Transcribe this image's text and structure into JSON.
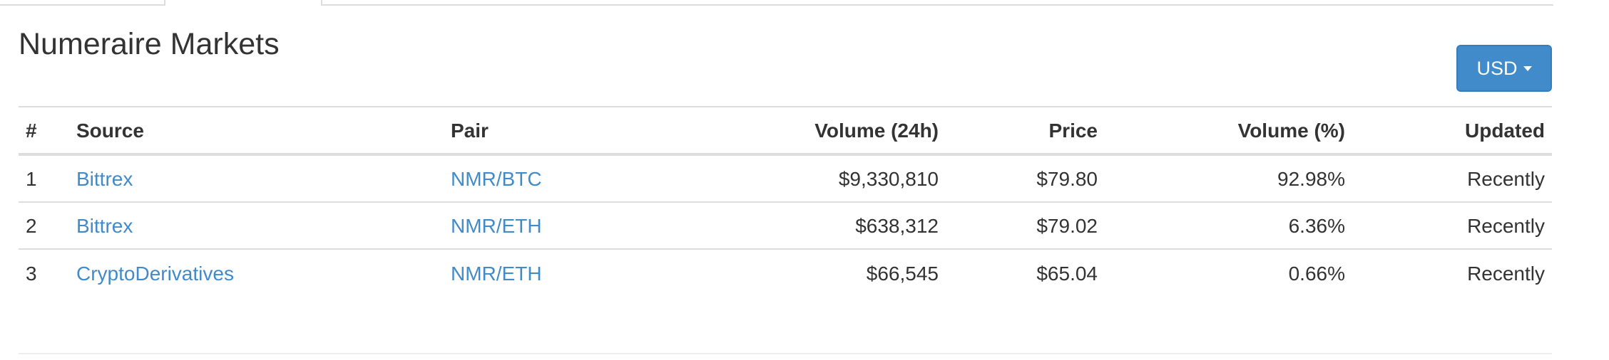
{
  "page": {
    "title": "Numeraire Markets"
  },
  "currency_button": {
    "label": "USD",
    "icon": "caret-down-icon"
  },
  "colors": {
    "link": "#428bca",
    "button": "#428bca",
    "text": "#333333",
    "border": "#dddddd"
  },
  "table": {
    "headers": [
      "#",
      "Source",
      "Pair",
      "Volume (24h)",
      "Price",
      "Volume (%)",
      "Updated"
    ],
    "rows": [
      {
        "rank": "1",
        "source": "Bittrex",
        "pair": "NMR/BTC",
        "volume": "$9,330,810",
        "price": "$79.80",
        "volume_pct": "92.98%",
        "updated": "Recently"
      },
      {
        "rank": "2",
        "source": "Bittrex",
        "pair": "NMR/ETH",
        "volume": "$638,312",
        "price": "$79.02",
        "volume_pct": "6.36%",
        "updated": "Recently"
      },
      {
        "rank": "3",
        "source": "CryptoDerivatives",
        "pair": "NMR/ETH",
        "volume": "$66,545",
        "price": "$65.04",
        "volume_pct": "0.66%",
        "updated": "Recently"
      }
    ]
  }
}
